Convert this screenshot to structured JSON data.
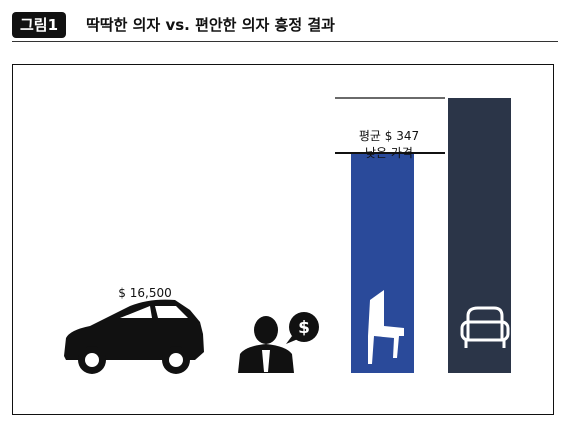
{
  "figure": {
    "badge": "그림1",
    "title": "딱딱한 의자 vs. 편안한 의자 흥정 결과"
  },
  "car_price_label": "$ 16,500",
  "chart_data": {
    "type": "bar",
    "categories": [
      "딱딱한 의자",
      "편안한 의자"
    ],
    "values": [
      8,
      10
    ],
    "difference_label_line1": "평균 $ 347",
    "difference_label_line2": "낮은 가격"
  },
  "colors": {
    "hard_chair_bar": "#2a4a9a",
    "soft_chair_bar": "#2b3548",
    "icons": "#111111"
  }
}
